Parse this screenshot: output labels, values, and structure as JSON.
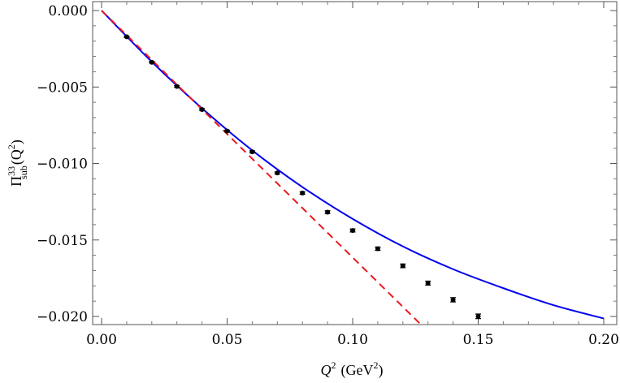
{
  "chart_data": {
    "type": "line",
    "xlabel": {
      "symbol": "Q",
      "sup": "2",
      "units": "(GeV",
      "units_sup": "2",
      "units_close": ")"
    },
    "ylabel": {
      "symbol": "Π",
      "sup": "33",
      "sub": "sub",
      "arg_open": "(Q",
      "arg_sup": "2",
      "arg_close": ")"
    },
    "xlim": [
      0.0,
      0.2
    ],
    "ylim": [
      -0.0205,
      0.0
    ],
    "x_ticks": [
      0.0,
      0.05,
      0.1,
      0.15,
      0.2
    ],
    "x_tick_labels": [
      "0.00",
      "0.05",
      "0.10",
      "0.15",
      "0.20"
    ],
    "y_ticks": [
      0.0,
      -0.005,
      -0.01,
      -0.015,
      -0.02
    ],
    "y_tick_labels": [
      "0.000",
      "−0.005",
      "−0.010",
      "−0.015",
      "−0.020"
    ],
    "grid": false,
    "series": [
      {
        "kind": "points-with-errorbars",
        "color": "#000000",
        "x": [
          0.01,
          0.02,
          0.03,
          0.04,
          0.05,
          0.06,
          0.07,
          0.08,
          0.09,
          0.1,
          0.11,
          0.12,
          0.13,
          0.14,
          0.15
        ],
        "y": [
          -0.00172,
          -0.00338,
          -0.00496,
          -0.00647,
          -0.00788,
          -0.00924,
          -0.01062,
          -0.01193,
          -0.01318,
          -0.01438,
          -0.01557,
          -0.01669,
          -0.01782,
          -0.01891,
          -0.01999
        ],
        "err": [
          5e-05,
          5e-05,
          5e-05,
          6e-05,
          6e-05,
          7e-05,
          7e-05,
          8e-05,
          9e-05,
          0.0001,
          0.00011,
          0.00012,
          0.00013,
          0.00014,
          0.00015
        ]
      },
      {
        "kind": "solid-curve",
        "color": "#0000ee",
        "x": [
          0.0,
          0.02,
          0.04,
          0.06,
          0.08,
          0.1,
          0.12,
          0.14,
          0.16,
          0.18,
          0.2
        ],
        "y": [
          0.0,
          -0.00335,
          -0.00639,
          -0.00914,
          -0.01154,
          -0.01362,
          -0.01542,
          -0.01691,
          -0.01815,
          -0.01926,
          -0.02013
        ]
      },
      {
        "kind": "dashed-line",
        "color": "#e8191e",
        "x": [
          0.0,
          0.127
        ],
        "y": [
          0.0,
          -0.0205
        ]
      }
    ]
  }
}
